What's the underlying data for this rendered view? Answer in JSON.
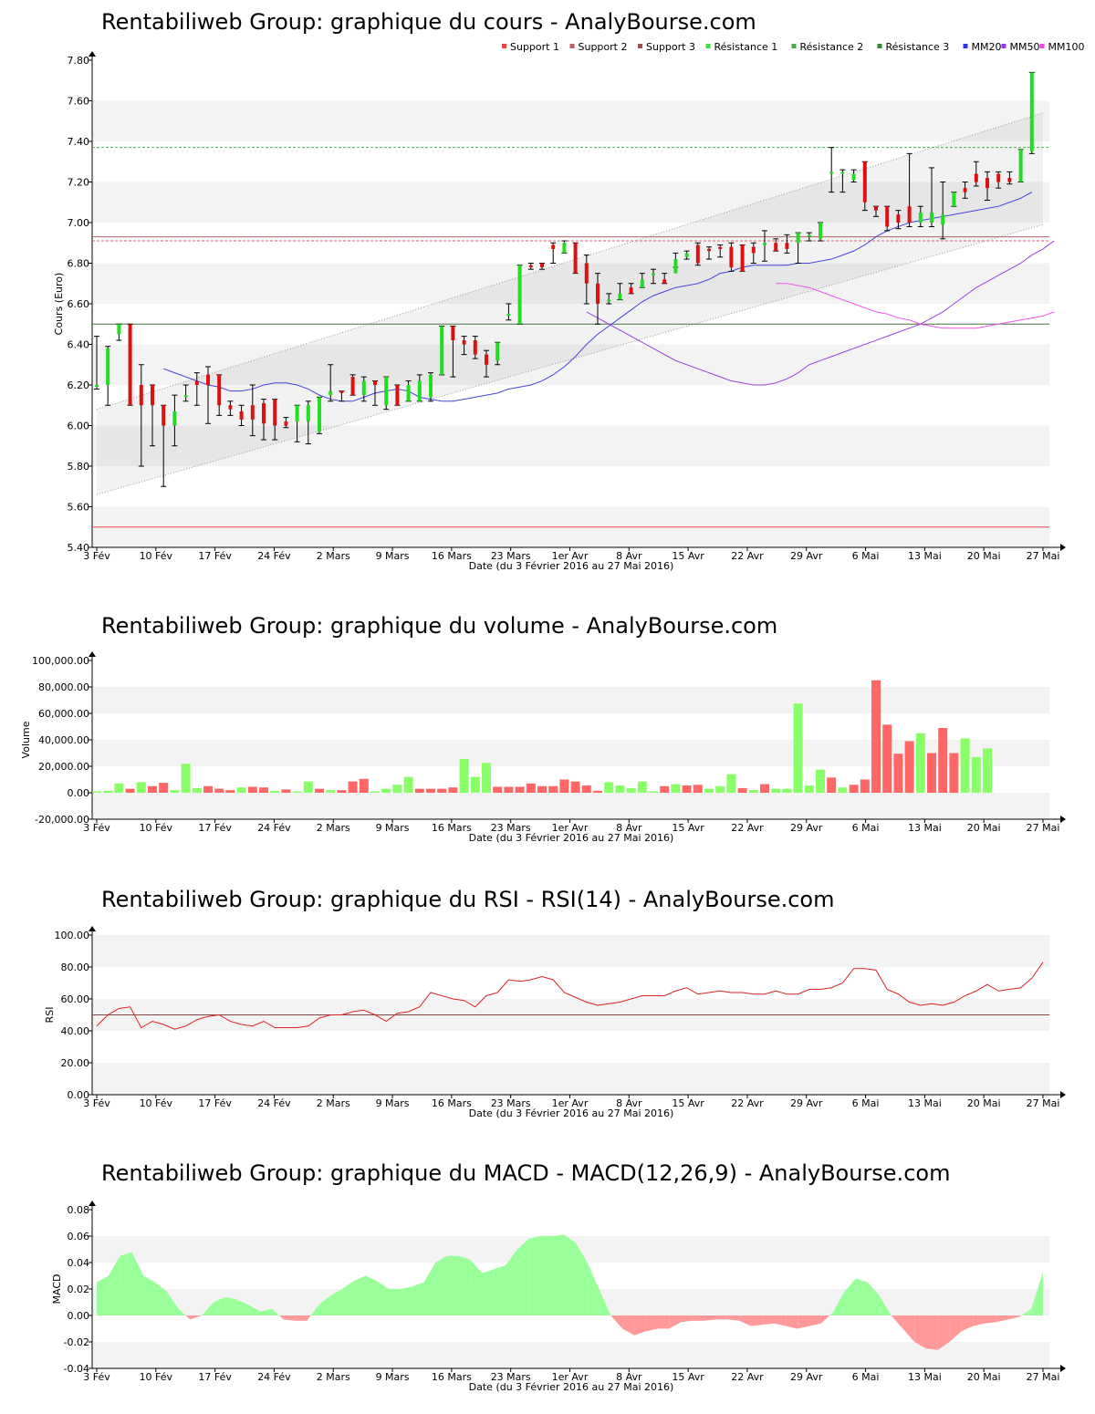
{
  "chart_data": [
    {
      "id": "cours",
      "type": "candlestick",
      "title": "Rentabiliweb Group: graphique du cours - AnalyBourse.com",
      "ylabel": "Cours (Euro)",
      "xlabel": "Date (du 3 Février 2016 au 27 Mai 2016)",
      "ylim": [
        5.4,
        7.8
      ],
      "yticks": [
        "5.40",
        "5.60",
        "5.80",
        "6.00",
        "6.20",
        "6.40",
        "6.60",
        "6.80",
        "7.00",
        "7.20",
        "7.40",
        "7.60",
        "7.80"
      ],
      "xticks": [
        "3 Fév",
        "10 Fév",
        "17 Fév",
        "24 Fév",
        "2 Mars",
        "9 Mars",
        "16 Mars",
        "23 Mars",
        "1er Avr",
        "8 Avr",
        "15 Avr",
        "22 Avr",
        "29 Avr",
        "6 Mai",
        "13 Mai",
        "20 Mai",
        "27 Mai"
      ],
      "legend": [
        {
          "name": "Support 1",
          "color": "#ee4444"
        },
        {
          "name": "Support 2",
          "color": "#c06060"
        },
        {
          "name": "Support 3",
          "color": "#a05050"
        },
        {
          "name": "Résistance 1",
          "color": "#44dd44"
        },
        {
          "name": "Résistance 2",
          "color": "#44aa44"
        },
        {
          "name": "Résistance 3",
          "color": "#338833"
        },
        {
          "name": "MM20",
          "color": "#3333ee"
        },
        {
          "name": "MM50",
          "color": "#9933ee"
        },
        {
          "name": "MM100",
          "color": "#ee44ee"
        }
      ],
      "levels": {
        "support1": 5.5,
        "support2": 6.93,
        "support3": 6.91,
        "resistance1": 7.37,
        "resistance3": 6.5
      },
      "channel": {
        "lower": [
          5.66,
          6.99
        ],
        "upper": [
          6.08,
          7.54
        ]
      },
      "candles": [
        [
          6.2,
          6.2,
          6.44,
          6.18
        ],
        [
          6.2,
          6.38,
          6.39,
          6.1
        ],
        [
          6.45,
          6.5,
          6.5,
          6.42
        ],
        [
          6.5,
          6.1,
          6.5,
          6.1
        ],
        [
          6.2,
          6.1,
          6.3,
          5.8
        ],
        [
          6.2,
          6.1,
          6.2,
          5.9
        ],
        [
          6.1,
          6.0,
          6.1,
          5.7
        ],
        [
          6.0,
          6.07,
          6.15,
          5.9
        ],
        [
          6.15,
          6.15,
          6.2,
          6.12
        ],
        [
          6.22,
          6.2,
          6.26,
          6.1
        ],
        [
          6.25,
          6.2,
          6.29,
          6.01
        ],
        [
          6.25,
          6.1,
          6.25,
          6.05
        ],
        [
          6.1,
          6.08,
          6.12,
          6.05
        ],
        [
          6.07,
          6.03,
          6.1,
          6.0
        ],
        [
          6.1,
          6.03,
          6.2,
          5.95
        ],
        [
          6.11,
          6.01,
          6.13,
          5.93
        ],
        [
          6.13,
          6.0,
          6.13,
          5.93
        ],
        [
          6.02,
          6.0,
          6.04,
          5.99
        ],
        [
          6.02,
          6.1,
          6.1,
          5.92
        ],
        [
          6.02,
          6.1,
          6.12,
          5.91
        ],
        [
          5.97,
          6.14,
          6.14,
          5.96
        ],
        [
          6.15,
          6.17,
          6.3,
          6.12
        ],
        [
          6.17,
          6.16,
          6.17,
          6.12
        ],
        [
          6.24,
          6.15,
          6.25,
          6.15
        ],
        [
          6.15,
          6.22,
          6.24,
          6.12
        ],
        [
          6.22,
          6.2,
          6.22,
          6.1
        ],
        [
          6.1,
          6.24,
          6.24,
          6.08
        ],
        [
          6.2,
          6.1,
          6.2,
          6.1
        ],
        [
          6.12,
          6.2,
          6.22,
          6.12
        ],
        [
          6.12,
          6.22,
          6.25,
          6.12
        ],
        [
          6.14,
          6.25,
          6.26,
          6.12
        ],
        [
          6.25,
          6.49,
          6.49,
          6.25
        ],
        [
          6.49,
          6.42,
          6.49,
          6.24
        ],
        [
          6.42,
          6.4,
          6.44,
          6.35
        ],
        [
          6.42,
          6.35,
          6.44,
          6.33
        ],
        [
          6.35,
          6.3,
          6.37,
          6.24
        ],
        [
          6.32,
          6.41,
          6.41,
          6.3
        ],
        [
          6.55,
          6.55,
          6.6,
          6.52
        ],
        [
          6.5,
          6.79,
          6.79,
          6.5
        ],
        [
          6.79,
          6.78,
          6.8,
          6.77
        ],
        [
          6.8,
          6.78,
          6.8,
          6.77
        ],
        [
          6.89,
          6.87,
          6.9,
          6.8
        ],
        [
          6.85,
          6.9,
          6.91,
          6.85
        ],
        [
          6.9,
          6.75,
          6.9,
          6.75
        ],
        [
          6.8,
          6.7,
          6.84,
          6.6
        ],
        [
          6.7,
          6.6,
          6.75,
          6.5
        ],
        [
          6.62,
          6.62,
          6.65,
          6.6
        ],
        [
          6.62,
          6.65,
          6.7,
          6.62
        ],
        [
          6.68,
          6.65,
          6.7,
          6.65
        ],
        [
          6.68,
          6.72,
          6.75,
          6.68
        ],
        [
          6.75,
          6.75,
          6.77,
          6.7
        ],
        [
          6.72,
          6.7,
          6.75,
          6.7
        ],
        [
          6.75,
          6.82,
          6.85,
          6.78
        ],
        [
          6.83,
          6.85,
          6.86,
          6.82
        ],
        [
          6.89,
          6.8,
          6.9,
          6.79
        ],
        [
          6.87,
          6.86,
          6.88,
          6.82
        ],
        [
          6.88,
          6.87,
          6.89,
          6.83
        ],
        [
          6.88,
          6.78,
          6.9,
          6.76
        ],
        [
          6.89,
          6.76,
          6.89,
          6.76
        ],
        [
          6.88,
          6.85,
          6.9,
          6.8
        ],
        [
          6.89,
          6.9,
          6.96,
          6.81
        ],
        [
          6.9,
          6.86,
          6.92,
          6.86
        ],
        [
          6.9,
          6.87,
          6.94,
          6.85
        ],
        [
          6.9,
          6.95,
          6.95,
          6.8
        ],
        [
          6.93,
          6.94,
          6.95,
          6.91
        ],
        [
          6.92,
          7.0,
          7.0,
          6.91
        ],
        [
          7.25,
          7.25,
          7.37,
          7.15
        ],
        [
          7.25,
          7.25,
          7.26,
          7.15
        ],
        [
          7.21,
          7.24,
          7.26,
          7.2
        ],
        [
          7.3,
          7.1,
          7.3,
          7.06
        ],
        [
          7.08,
          7.06,
          7.08,
          7.03
        ],
        [
          7.08,
          6.98,
          7.08,
          6.96
        ],
        [
          7.04,
          7.0,
          7.06,
          6.97
        ],
        [
          7.08,
          7.0,
          7.34,
          6.98
        ],
        [
          7.0,
          7.05,
          7.08,
          6.98
        ],
        [
          7.0,
          7.05,
          7.27,
          6.98
        ],
        [
          6.99,
          7.04,
          7.2,
          6.92
        ],
        [
          7.08,
          7.15,
          7.15,
          7.08
        ],
        [
          7.17,
          7.15,
          7.2,
          7.12
        ],
        [
          7.24,
          7.2,
          7.3,
          7.18
        ],
        [
          7.22,
          7.17,
          7.25,
          7.11
        ],
        [
          7.24,
          7.2,
          7.25,
          7.17
        ],
        [
          7.22,
          7.2,
          7.25,
          7.19
        ],
        [
          7.2,
          7.36,
          7.36,
          7.2
        ],
        [
          7.35,
          7.74,
          7.74,
          7.34
        ]
      ],
      "series": [
        {
          "name": "MM20",
          "color": "#4444dd",
          "values": [
            6.28,
            6.26,
            6.24,
            6.22,
            6.2,
            6.19,
            6.17,
            6.17,
            6.18,
            6.2,
            6.21,
            6.21,
            6.2,
            6.18,
            6.15,
            6.13,
            6.12,
            6.12,
            6.14,
            6.16,
            6.17,
            6.18,
            6.17,
            6.14,
            6.13,
            6.12,
            6.12,
            6.13,
            6.14,
            6.15,
            6.16,
            6.18,
            6.19,
            6.2,
            6.22,
            6.25,
            6.29,
            6.34,
            6.4,
            6.45,
            6.49,
            6.53,
            6.57,
            6.61,
            6.64,
            6.66,
            6.68,
            6.69,
            6.7,
            6.72,
            6.75,
            6.76,
            6.78,
            6.79,
            6.79,
            6.79,
            6.79,
            6.8,
            6.8,
            6.81,
            6.82,
            6.84,
            6.86,
            6.89,
            6.93,
            6.96,
            6.98,
            7.0,
            7.01,
            7.02,
            7.03,
            7.04,
            7.05,
            7.06,
            7.07,
            7.08,
            7.1,
            7.12,
            7.15
          ]
        },
        {
          "name": "MM50",
          "color": "#9944dd",
          "values": [
            6.56,
            6.53,
            6.5,
            6.47,
            6.44,
            6.41,
            6.38,
            6.35,
            6.32,
            6.3,
            6.28,
            6.26,
            6.24,
            6.22,
            6.21,
            6.2,
            6.2,
            6.21,
            6.23,
            6.26,
            6.3,
            6.32,
            6.34,
            6.36,
            6.38,
            6.4,
            6.42,
            6.44,
            6.46,
            6.48,
            6.5,
            6.53,
            6.56,
            6.6,
            6.64,
            6.68,
            6.71,
            6.74,
            6.77,
            6.8,
            6.84,
            6.87,
            6.91
          ]
        },
        {
          "name": "MM100",
          "color": "#ee55ee",
          "values": [
            6.7,
            6.7,
            6.69,
            6.68,
            6.66,
            6.64,
            6.62,
            6.6,
            6.58,
            6.56,
            6.55,
            6.53,
            6.52,
            6.5,
            6.49,
            6.48,
            6.48,
            6.48,
            6.48,
            6.49,
            6.5,
            6.51,
            6.52,
            6.53,
            6.54,
            6.56
          ]
        }
      ]
    },
    {
      "id": "volume",
      "type": "bar",
      "title": "Rentabiliweb Group: graphique du volume - AnalyBourse.com",
      "ylabel": "Volume",
      "xlabel": "Date (du 3 Février 2016 au 27 Mai 2016)",
      "ylim": [
        -20000,
        100000
      ],
      "yticks": [
        "-20,000.00",
        "0.00",
        "20,000.00",
        "40,000.00",
        "60,000.00",
        "80,000.00",
        "100,000.00"
      ],
      "values": [
        1000,
        1500,
        7000,
        3000,
        8000,
        5000,
        7500,
        2000,
        22000,
        3500,
        5000,
        3000,
        2000,
        4000,
        4500,
        4000,
        1500,
        2500,
        1000,
        8500,
        3000,
        2000,
        2000,
        8500,
        10500,
        1000,
        3000,
        6000,
        12000,
        3000,
        3000,
        3000,
        4000,
        25500,
        12000,
        22500,
        4500,
        4500,
        4500,
        7000,
        5000,
        5000,
        10000,
        8500,
        5500,
        1500,
        8000,
        5500,
        3500,
        8500,
        1000,
        5000,
        6500,
        5500,
        6000,
        3000,
        5000,
        14000,
        3500,
        2000,
        6500,
        3000,
        3000,
        67500,
        5500,
        17500,
        11500,
        4000,
        6000,
        10000,
        85000,
        51500,
        29500,
        39000,
        45000,
        30000,
        49000,
        30000,
        41000,
        27000,
        33500
      ],
      "up": [
        true,
        true,
        true,
        false,
        true,
        false,
        false,
        true,
        true,
        true,
        false,
        false,
        false,
        true,
        false,
        false,
        true,
        false,
        true,
        true,
        false,
        true,
        false,
        false,
        false,
        true,
        true,
        true,
        true,
        false,
        false,
        false,
        false,
        true,
        true,
        true,
        false,
        false,
        false,
        false,
        false,
        false,
        false,
        false,
        false,
        false,
        true,
        true,
        true,
        true,
        true,
        false,
        true,
        false,
        false,
        true,
        true,
        true,
        false,
        true,
        false,
        true,
        true,
        true,
        true,
        true,
        false,
        true,
        false,
        false,
        false,
        false,
        false,
        false,
        true,
        false,
        false,
        false,
        true,
        true,
        true
      ]
    },
    {
      "id": "rsi",
      "type": "line",
      "title": "Rentabiliweb Group: graphique du RSI - RSI(14) - AnalyBourse.com",
      "ylabel": "RSI",
      "xlabel": "Date (du 3 Février 2016 au 27 Mai 2016)",
      "ylim": [
        0,
        100
      ],
      "yticks": [
        "0.00",
        "20.00",
        "40.00",
        "60.00",
        "80.00",
        "100.00"
      ],
      "reference": 50,
      "values": [
        43,
        50,
        54,
        55,
        42,
        46,
        44,
        41,
        43,
        47,
        49,
        50,
        46,
        44,
        43,
        46,
        42,
        42,
        42,
        43,
        48,
        50,
        50,
        52,
        53,
        50,
        46,
        51,
        52,
        55,
        64,
        62,
        60,
        59,
        55,
        62,
        64,
        72,
        71,
        72,
        74,
        72,
        64,
        61,
        58,
        56,
        57,
        58,
        60,
        62,
        62,
        62,
        65,
        67,
        63,
        64,
        65,
        64,
        64,
        63,
        63,
        65,
        63,
        63,
        66,
        66,
        67,
        70,
        79,
        79,
        78,
        66,
        63,
        58,
        56,
        57,
        56,
        58,
        62,
        65,
        69,
        65,
        66,
        67,
        73,
        83
      ]
    },
    {
      "id": "macd",
      "type": "area",
      "title": "Rentabiliweb Group: graphique du MACD - MACD(12,26,9) - AnalyBourse.com",
      "ylabel": "MACD",
      "xlabel": "Date (du 3 Février 2016 au 27 Mai 2016)",
      "ylim": [
        -0.04,
        0.08
      ],
      "yticks": [
        "-0.04",
        "-0.02",
        "0.00",
        "0.02",
        "0.04",
        "0.06",
        "0.08"
      ],
      "values": [
        0.025,
        0.03,
        0.045,
        0.048,
        0.03,
        0.025,
        0.018,
        0.005,
        -0.003,
        0.0,
        0.01,
        0.014,
        0.012,
        0.008,
        0.003,
        0.005,
        -0.003,
        -0.004,
        -0.004,
        0.008,
        0.015,
        0.02,
        0.026,
        0.03,
        0.026,
        0.02,
        0.02,
        0.022,
        0.025,
        0.04,
        0.045,
        0.045,
        0.042,
        0.032,
        0.035,
        0.038,
        0.05,
        0.058,
        0.06,
        0.06,
        0.061,
        0.055,
        0.04,
        0.02,
        0.0,
        -0.01,
        -0.015,
        -0.012,
        -0.01,
        -0.01,
        -0.005,
        -0.004,
        -0.004,
        -0.003,
        -0.003,
        -0.004,
        -0.008,
        -0.007,
        -0.006,
        -0.008,
        -0.01,
        -0.008,
        -0.006,
        0.002,
        0.018,
        0.028,
        0.025,
        0.015,
        0.0,
        -0.01,
        -0.02,
        -0.025,
        -0.026,
        -0.02,
        -0.012,
        -0.008,
        -0.006,
        -0.005,
        -0.003,
        -0.001,
        0.005,
        0.033
      ]
    }
  ]
}
